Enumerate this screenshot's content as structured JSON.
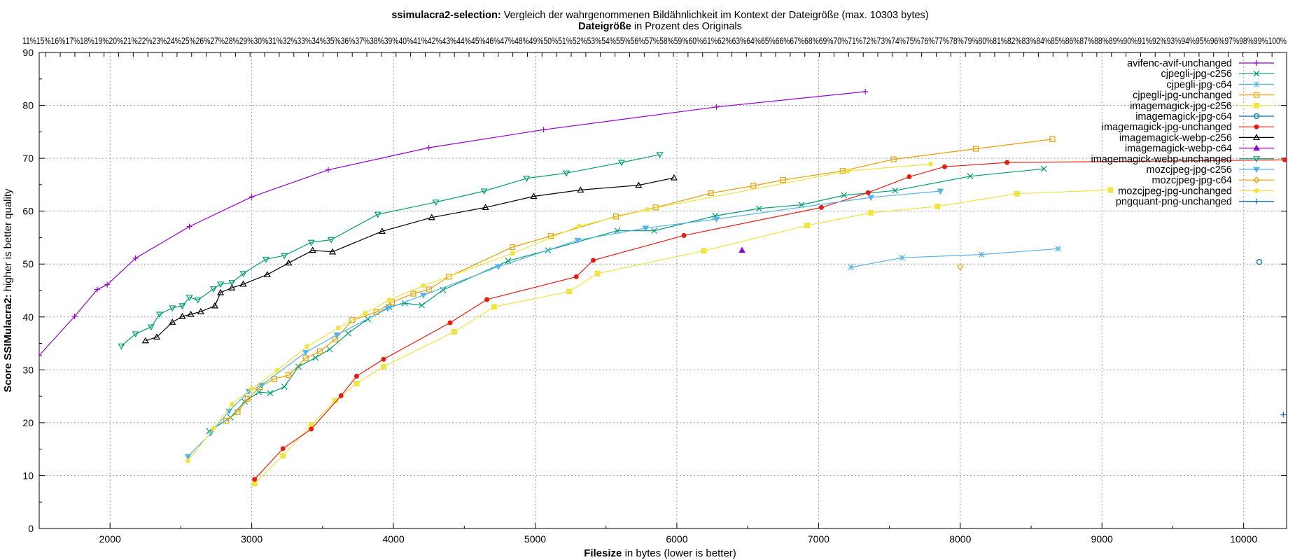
{
  "chart_data": {
    "type": "line",
    "title_bold": "ssimulacra2-selection:",
    "title_rest": "Vergleich der wahrgenommenen Bildähnlichkeit im Kontext der Dateigröße (max. 10303 bytes)",
    "x2label_bold": "Dateigröße",
    "x2label_rest": "in Prozent des Originals",
    "x2_tick_text": "11%15%16%17%18%19%20%21%22%23%24%25%26%27%28%29%30%31%32%33%34%35%36%37%38%39%40%41%42%43%44%45%46%47%48%49%50%51%52%53%54%55%56%57%58%59%60%61%62%63%64%65%66%67%68%69%70%71%72%73%74%75%76%77%78%79%80%81%82%83%84%85%86%87%88%89%90%91%92%93%94%95%96%97%98%99%100%",
    "xlabel_bold": "Filesize",
    "xlabel_rest": "in bytes (lower is better)",
    "ylabel_bold": "Score SSIMulacra2:",
    "ylabel_rest": "higher is better quality",
    "xlim": [
      1500,
      10303
    ],
    "ylim": [
      0,
      90
    ],
    "xticks": [
      2000,
      3000,
      4000,
      5000,
      6000,
      7000,
      8000,
      9000,
      10000
    ],
    "yticks": [
      0,
      10,
      20,
      30,
      40,
      50,
      60,
      70,
      80,
      90
    ],
    "grid": true,
    "legend_position": "top-right",
    "series": [
      {
        "name": "avifenc-avif-unchanged",
        "color": "#9400d3",
        "marker": "plus",
        "points": [
          [
            1500,
            32.7
          ],
          [
            1750,
            40.1
          ],
          [
            1910,
            45.2
          ],
          [
            1980,
            46.1
          ],
          [
            2180,
            51.1
          ],
          [
            2560,
            57.1
          ],
          [
            3000,
            62.7
          ],
          [
            3540,
            67.8
          ],
          [
            4250,
            72.0
          ],
          [
            5060,
            75.4
          ],
          [
            6280,
            79.7
          ],
          [
            7330,
            82.6
          ]
        ]
      },
      {
        "name": "cjpegli-jpg-c256",
        "color": "#009e73",
        "marker": "x",
        "points": [
          [
            2700,
            18.4
          ],
          [
            2850,
            21.0
          ],
          [
            2950,
            24.0
          ],
          [
            3050,
            25.8
          ],
          [
            3130,
            25.6
          ],
          [
            3230,
            26.8
          ],
          [
            3330,
            30.6
          ],
          [
            3450,
            32.3
          ],
          [
            3550,
            33.9
          ],
          [
            3680,
            36.9
          ],
          [
            3820,
            39.6
          ],
          [
            3970,
            41.9
          ],
          [
            4080,
            42.6
          ],
          [
            4200,
            42.2
          ],
          [
            4350,
            45.1
          ],
          [
            4810,
            50.6
          ],
          [
            5090,
            52.6
          ],
          [
            5580,
            56.3
          ],
          [
            5840,
            56.3
          ],
          [
            6270,
            59.1
          ],
          [
            6580,
            60.5
          ],
          [
            6880,
            61.2
          ],
          [
            7180,
            63.0
          ],
          [
            7540,
            63.9
          ],
          [
            8070,
            66.6
          ],
          [
            8590,
            68.0
          ]
        ]
      },
      {
        "name": "cjpegli-jpg-c64",
        "color": "#56b4e9",
        "marker": "star",
        "points": [
          [
            7230,
            49.4
          ],
          [
            7590,
            51.2
          ],
          [
            8150,
            51.8
          ],
          [
            8690,
            52.9
          ]
        ]
      },
      {
        "name": "cjpegli-jpg-unchanged",
        "color": "#e69f00",
        "marker": "square",
        "points": [
          [
            2820,
            20.4
          ],
          [
            2900,
            22.0
          ],
          [
            2970,
            24.5
          ],
          [
            3060,
            26.8
          ],
          [
            3160,
            28.3
          ],
          [
            3260,
            29.0
          ],
          [
            3380,
            32.2
          ],
          [
            3480,
            33.5
          ],
          [
            3590,
            35.8
          ],
          [
            3710,
            39.4
          ],
          [
            3880,
            40.9
          ],
          [
            3990,
            42.8
          ],
          [
            4140,
            44.4
          ],
          [
            4250,
            45.2
          ],
          [
            4390,
            47.6
          ],
          [
            4840,
            53.2
          ],
          [
            5110,
            55.3
          ],
          [
            5570,
            59.0
          ],
          [
            5850,
            60.7
          ],
          [
            6240,
            63.4
          ],
          [
            6540,
            64.8
          ],
          [
            6750,
            65.9
          ],
          [
            7170,
            67.6
          ],
          [
            7530,
            69.8
          ],
          [
            8110,
            71.8
          ],
          [
            8650,
            73.6
          ]
        ]
      },
      {
        "name": "imagemagick-jpg-c256",
        "color": "#f0e442",
        "marker": "square-filled",
        "points": [
          [
            3020,
            8.5
          ],
          [
            3220,
            13.8
          ],
          [
            3420,
            19.6
          ],
          [
            3590,
            24.2
          ],
          [
            3740,
            27.4
          ],
          [
            3930,
            30.6
          ],
          [
            4430,
            37.2
          ],
          [
            4710,
            41.9
          ],
          [
            5240,
            44.8
          ],
          [
            5440,
            48.2
          ],
          [
            6190,
            52.5
          ],
          [
            6920,
            57.3
          ],
          [
            7370,
            59.7
          ],
          [
            7840,
            60.9
          ],
          [
            8400,
            63.3
          ],
          [
            9060,
            64.0
          ]
        ]
      },
      {
        "name": "imagemagick-jpg-c64",
        "color": "#0072b2",
        "marker": "circle",
        "points": [
          [
            10110,
            50.4
          ]
        ]
      },
      {
        "name": "imagemagick-jpg-unchanged",
        "color": "#e51e10",
        "marker": "circle-filled",
        "points": [
          [
            3020,
            9.3
          ],
          [
            3220,
            15.1
          ],
          [
            3420,
            18.8
          ],
          [
            3630,
            25.1
          ],
          [
            3740,
            28.8
          ],
          [
            3930,
            32.0
          ],
          [
            4400,
            38.9
          ],
          [
            4660,
            43.3
          ],
          [
            5290,
            47.6
          ],
          [
            5410,
            50.7
          ],
          [
            6050,
            55.4
          ],
          [
            7020,
            60.7
          ],
          [
            7350,
            63.5
          ],
          [
            7640,
            66.5
          ],
          [
            7890,
            68.4
          ],
          [
            8330,
            69.2
          ],
          [
            10290,
            69.7
          ]
        ]
      },
      {
        "name": "imagemagick-webp-c256",
        "color": "#000000",
        "marker": "triangle",
        "points": [
          [
            2250,
            35.5
          ],
          [
            2330,
            36.2
          ],
          [
            2440,
            39.0
          ],
          [
            2510,
            40.1
          ],
          [
            2570,
            40.5
          ],
          [
            2640,
            41.0
          ],
          [
            2740,
            42.1
          ],
          [
            2780,
            44.6
          ],
          [
            2860,
            45.5
          ],
          [
            2940,
            46.2
          ],
          [
            3110,
            48.0
          ],
          [
            3260,
            50.2
          ],
          [
            3430,
            52.6
          ],
          [
            3570,
            52.3
          ],
          [
            3920,
            56.2
          ],
          [
            4270,
            58.8
          ],
          [
            4650,
            60.7
          ],
          [
            4990,
            62.8
          ],
          [
            5320,
            64.0
          ],
          [
            5730,
            64.9
          ],
          [
            5980,
            66.3
          ]
        ]
      },
      {
        "name": "imagemagick-webp-c64",
        "color": "#9400d3",
        "marker": "triangle-filled",
        "points": [
          [
            6460,
            52.6
          ]
        ]
      },
      {
        "name": "imagemagick-webp-unchanged",
        "color": "#009e73",
        "marker": "triangle-down",
        "points": [
          [
            2080,
            34.5
          ],
          [
            2180,
            36.8
          ],
          [
            2290,
            38.1
          ],
          [
            2350,
            40.5
          ],
          [
            2440,
            41.7
          ],
          [
            2510,
            42.1
          ],
          [
            2560,
            43.7
          ],
          [
            2620,
            43.2
          ],
          [
            2730,
            45.3
          ],
          [
            2780,
            46.2
          ],
          [
            2860,
            46.5
          ],
          [
            2940,
            48.2
          ],
          [
            3100,
            50.9
          ],
          [
            3230,
            51.6
          ],
          [
            3420,
            54.1
          ],
          [
            3560,
            54.6
          ],
          [
            3890,
            59.4
          ],
          [
            4300,
            61.7
          ],
          [
            4640,
            63.8
          ],
          [
            4940,
            66.2
          ],
          [
            5220,
            67.2
          ],
          [
            5610,
            69.2
          ],
          [
            5880,
            70.7
          ]
        ]
      },
      {
        "name": "mozcjpeg-jpg-c256",
        "color": "#56b4e9",
        "marker": "triangle-down-filled",
        "points": [
          [
            2550,
            13.6
          ],
          [
            2710,
            18.0
          ],
          [
            2840,
            22.2
          ],
          [
            2980,
            25.9
          ],
          [
            3070,
            27.1
          ],
          [
            3380,
            33.3
          ],
          [
            3600,
            36.6
          ],
          [
            3960,
            41.6
          ],
          [
            4210,
            44.1
          ],
          [
            4740,
            49.5
          ],
          [
            5300,
            54.5
          ],
          [
            5780,
            56.8
          ],
          [
            6280,
            58.5
          ],
          [
            7370,
            62.6
          ],
          [
            7860,
            63.8
          ]
        ]
      },
      {
        "name": "mozcjpeg-jpg-c64",
        "color": "#e69f00",
        "marker": "diamond",
        "points": [
          [
            8000,
            49.5
          ]
        ]
      },
      {
        "name": "mozcjpeg-jpg-unchanged",
        "color": "#f0e442",
        "marker": "circle-filled",
        "points": [
          [
            2550,
            12.8
          ],
          [
            2730,
            18.9
          ],
          [
            2860,
            23.5
          ],
          [
            3000,
            26.4
          ],
          [
            3180,
            29.9
          ],
          [
            3390,
            34.4
          ],
          [
            3610,
            37.9
          ],
          [
            3800,
            40.7
          ],
          [
            3970,
            43.2
          ],
          [
            4210,
            45.9
          ],
          [
            4840,
            52.0
          ],
          [
            5310,
            57.2
          ],
          [
            5790,
            60.3
          ],
          [
            7210,
            67.6
          ],
          [
            7790,
            68.9
          ]
        ]
      },
      {
        "name": "pngquant-png-unchanged",
        "color": "#0072b2",
        "marker": "plus",
        "points": [
          [
            10280,
            21.5
          ]
        ]
      }
    ]
  }
}
